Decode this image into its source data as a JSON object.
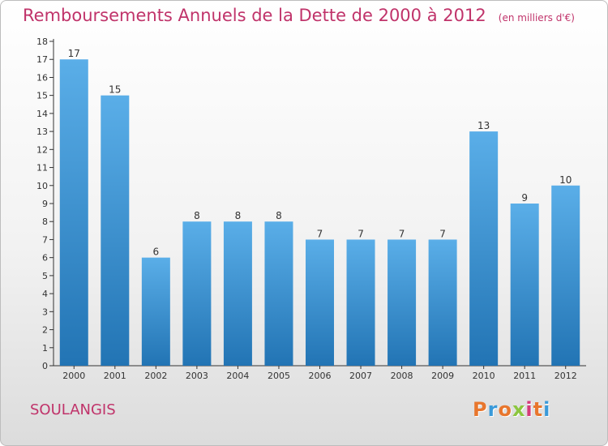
{
  "header": {
    "title": "Remboursements Annuels de la Dette de 2000 à 2012",
    "unit": "(en milliers d'€)"
  },
  "footer": {
    "city": "SOULANGIS",
    "logo_text": "Proxiti"
  },
  "colors": {
    "title": "#c0336a",
    "bar_top": "#5aaee8",
    "bar_bottom": "#2274b4",
    "logo_letters": [
      "#e8762d",
      "#3a9ad9",
      "#e8762d",
      "#8cc63f",
      "#d63a7a",
      "#e8762d",
      "#3a9ad9"
    ]
  },
  "chart_data": {
    "type": "bar",
    "title": "Remboursements Annuels de la Dette de 2000 à 2012",
    "xlabel": "",
    "ylabel": "",
    "categories": [
      "2000",
      "2001",
      "2002",
      "2003",
      "2004",
      "2005",
      "2006",
      "2007",
      "2008",
      "2009",
      "2010",
      "2011",
      "2012"
    ],
    "values": [
      17,
      15,
      6,
      8,
      8,
      8,
      7,
      7,
      7,
      7,
      13,
      9,
      10
    ],
    "ylim": [
      0,
      18
    ],
    "yticks": [
      0,
      1,
      2,
      3,
      4,
      5,
      6,
      7,
      8,
      9,
      10,
      11,
      12,
      13,
      14,
      15,
      16,
      17,
      18
    ],
    "grid": false,
    "legend": "none"
  }
}
